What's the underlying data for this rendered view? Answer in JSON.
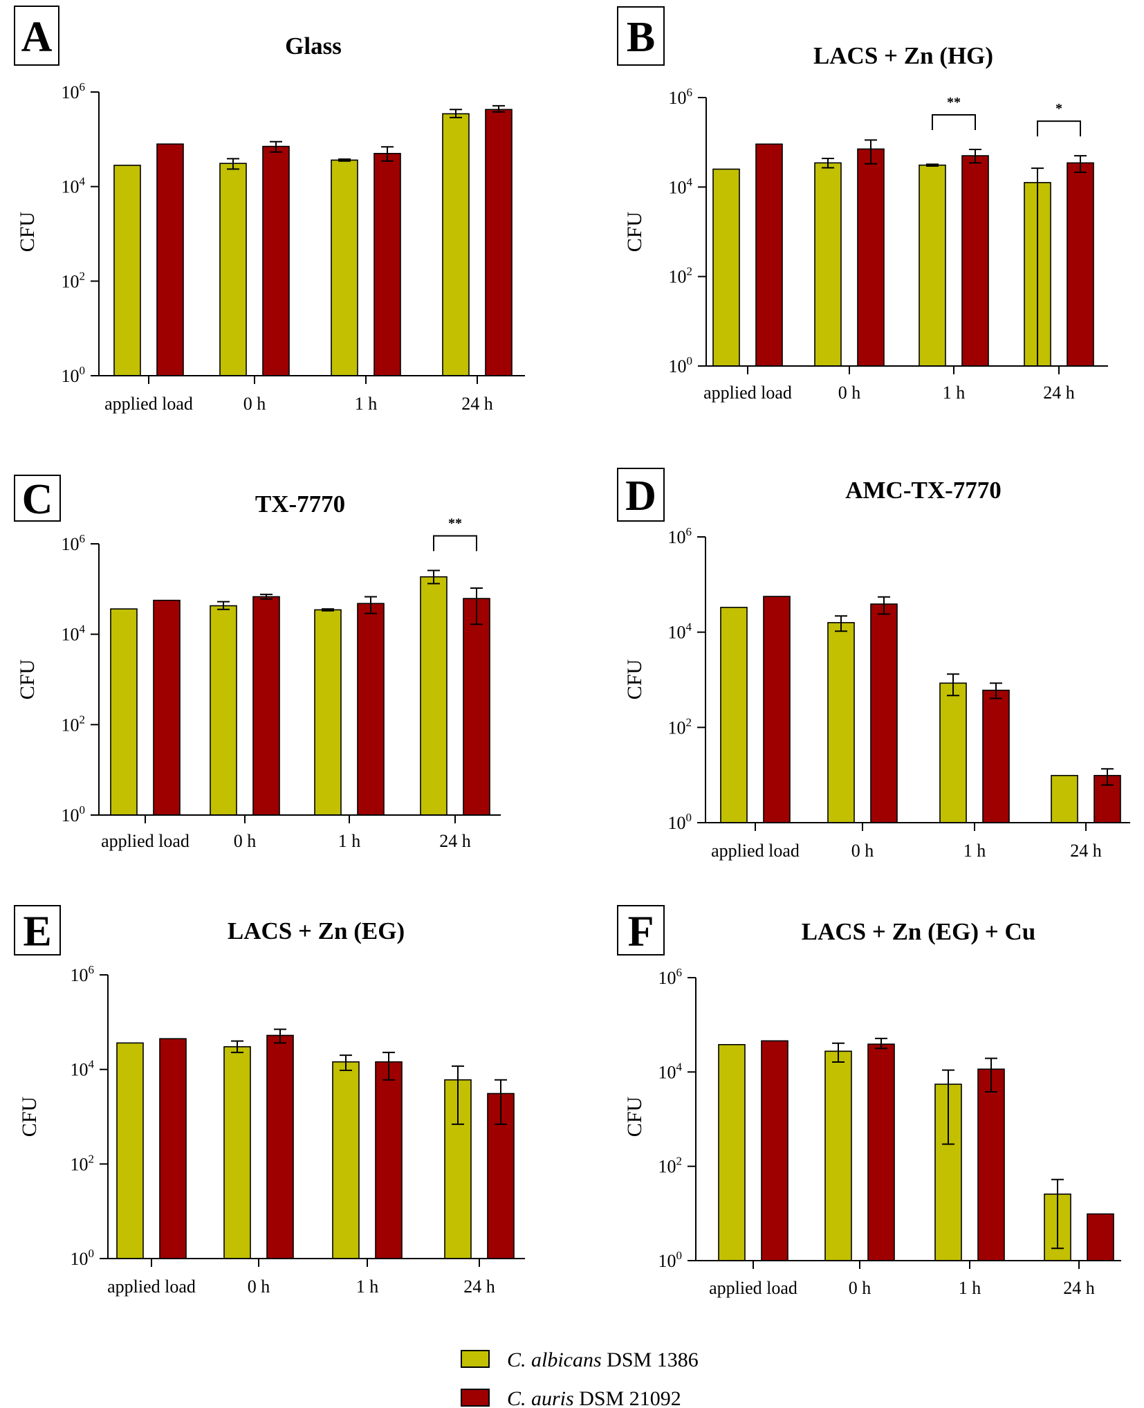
{
  "colors": {
    "albicans": "#c2c000",
    "auris": "#9e0000",
    "axis": "#000000"
  },
  "legend": [
    {
      "species": "C. albicans",
      "strain": " DSM 1386",
      "color_key": "albicans"
    },
    {
      "species": "C. auris",
      "strain": " DSM 21092",
      "color_key": "auris"
    }
  ],
  "chart_data": [
    {
      "type": "bar",
      "panel": "A",
      "title": "Glass",
      "ylabel": "CFU",
      "yscale": "log10",
      "ylim_log10": [
        0,
        6
      ],
      "yticks": [
        {
          "base": "10",
          "exp": "0",
          "v": 0
        },
        {
          "base": "10",
          "exp": "2",
          "v": 2
        },
        {
          "base": "10",
          "exp": "4",
          "v": 4
        },
        {
          "base": "10",
          "exp": "6",
          "v": 6
        }
      ],
      "categories": [
        "applied load",
        "0 h",
        "1 h",
        "24 h"
      ],
      "series": [
        {
          "name": "C. albicans DSM 1386",
          "values_log10": [
            4.45,
            4.49,
            4.56,
            5.54
          ],
          "err_log10": [
            null,
            [
              4.37,
              4.59
            ],
            [
              4.54,
              4.58
            ],
            [
              5.46,
              5.63
            ]
          ]
        },
        {
          "name": "C. auris DSM 21092",
          "values_log10": [
            4.9,
            4.85,
            4.7,
            5.63
          ],
          "err_log10": [
            null,
            [
              4.73,
              4.95
            ],
            [
              4.54,
              4.84
            ],
            [
              5.58,
              5.71
            ]
          ]
        }
      ],
      "significance": []
    },
    {
      "type": "bar",
      "panel": "B",
      "title": "LACS + Zn (HG)",
      "ylabel": "CFU",
      "yscale": "log10",
      "ylim_log10": [
        0,
        6
      ],
      "yticks": [
        {
          "base": "10",
          "exp": "0",
          "v": 0
        },
        {
          "base": "10",
          "exp": "2",
          "v": 2
        },
        {
          "base": "10",
          "exp": "4",
          "v": 4
        },
        {
          "base": "10",
          "exp": "6",
          "v": 6
        }
      ],
      "categories": [
        "applied load",
        "0 h",
        "1 h",
        "24 h"
      ],
      "series": [
        {
          "name": "C. albicans DSM 1386",
          "values_log10": [
            4.4,
            4.54,
            4.49,
            4.1
          ],
          "err_log10": [
            null,
            [
              4.43,
              4.64
            ],
            [
              4.47,
              4.51
            ],
            [
              0,
              4.42
            ]
          ]
        },
        {
          "name": "C. auris DSM 21092",
          "values_log10": [
            4.96,
            4.85,
            4.7,
            4.54
          ],
          "err_log10": [
            null,
            [
              4.52,
              5.05
            ],
            [
              4.54,
              4.84
            ],
            [
              4.33,
              4.7
            ]
          ]
        }
      ],
      "significance": [
        {
          "category_index": 2,
          "label": "**"
        },
        {
          "category_index": 3,
          "label": "*"
        }
      ]
    },
    {
      "type": "bar",
      "panel": "C",
      "title": "TX-7770",
      "ylabel": "CFU",
      "yscale": "log10",
      "ylim_log10": [
        0,
        6
      ],
      "yticks": [
        {
          "base": "10",
          "exp": "0",
          "v": 0
        },
        {
          "base": "10",
          "exp": "2",
          "v": 2
        },
        {
          "base": "10",
          "exp": "4",
          "v": 4
        },
        {
          "base": "10",
          "exp": "6",
          "v": 6
        }
      ],
      "categories": [
        "applied load",
        "0 h",
        "1 h",
        "24 h"
      ],
      "series": [
        {
          "name": "C. albicans DSM 1386",
          "values_log10": [
            4.56,
            4.63,
            4.54,
            5.27
          ],
          "err_log10": [
            null,
            [
              4.55,
              4.72
            ],
            [
              4.52,
              4.56
            ],
            [
              5.12,
              5.41
            ]
          ]
        },
        {
          "name": "C. auris DSM 21092",
          "values_log10": [
            4.75,
            4.83,
            4.68,
            4.79
          ],
          "err_log10": [
            null,
            [
              4.78,
              4.88
            ],
            [
              4.46,
              4.83
            ],
            [
              4.22,
              5.02
            ]
          ]
        }
      ],
      "significance": [
        {
          "category_index": 3,
          "label": "**"
        }
      ]
    },
    {
      "type": "bar",
      "panel": "D",
      "title": "AMC-TX-7770",
      "ylabel": "CFU",
      "yscale": "log10",
      "ylim_log10": [
        0,
        6
      ],
      "yticks": [
        {
          "base": "10",
          "exp": "0",
          "v": 0
        },
        {
          "base": "10",
          "exp": "2",
          "v": 2
        },
        {
          "base": "10",
          "exp": "4",
          "v": 4
        },
        {
          "base": "10",
          "exp": "6",
          "v": 6
        }
      ],
      "categories": [
        "applied load",
        "0 h",
        "1 h",
        "24 h"
      ],
      "series": [
        {
          "name": "C. albicans DSM 1386",
          "values_log10": [
            4.52,
            4.2,
            2.93,
            0.99
          ],
          "err_log10": [
            null,
            [
              4.02,
              4.34
            ],
            [
              2.67,
              3.12
            ],
            null
          ]
        },
        {
          "name": "C. auris DSM 21092",
          "values_log10": [
            4.75,
            4.59,
            2.78,
            0.99
          ],
          "err_log10": [
            null,
            [
              4.38,
              4.74
            ],
            [
              2.61,
              2.93
            ],
            [
              0.79,
              1.13
            ]
          ]
        }
      ],
      "significance": []
    },
    {
      "type": "bar",
      "panel": "E",
      "title": "LACS + Zn (EG)",
      "ylabel": "CFU",
      "yscale": "log10",
      "ylim_log10": [
        0,
        6
      ],
      "yticks": [
        {
          "base": "10",
          "exp": "0",
          "v": 0
        },
        {
          "base": "10",
          "exp": "2",
          "v": 2
        },
        {
          "base": "10",
          "exp": "4",
          "v": 4
        },
        {
          "base": "10",
          "exp": "6",
          "v": 6
        }
      ],
      "categories": [
        "applied load",
        "0 h",
        "1 h",
        "24 h"
      ],
      "series": [
        {
          "name": "C. albicans DSM 1386",
          "values_log10": [
            4.56,
            4.48,
            4.16,
            3.78
          ],
          "err_log10": [
            null,
            [
              4.36,
              4.6
            ],
            [
              3.98,
              4.3
            ],
            [
              2.84,
              4.07
            ]
          ]
        },
        {
          "name": "C. auris DSM 21092",
          "values_log10": [
            4.65,
            4.72,
            4.16,
            3.49
          ],
          "err_log10": [
            null,
            [
              4.56,
              4.85
            ],
            [
              3.78,
              4.36
            ],
            [
              2.84,
              3.78
            ]
          ]
        }
      ],
      "significance": []
    },
    {
      "type": "bar",
      "panel": "F",
      "title": "LACS + Zn (EG) + Cu",
      "ylabel": "CFU",
      "yscale": "log10",
      "ylim_log10": [
        0,
        6
      ],
      "yticks": [
        {
          "base": "10",
          "exp": "0",
          "v": 0
        },
        {
          "base": "10",
          "exp": "2",
          "v": 2
        },
        {
          "base": "10",
          "exp": "4",
          "v": 4
        },
        {
          "base": "10",
          "exp": "6",
          "v": 6
        }
      ],
      "categories": [
        "applied load",
        "0 h",
        "1 h",
        "24 h"
      ],
      "series": [
        {
          "name": "C. albicans DSM 1386",
          "values_log10": [
            4.58,
            4.44,
            3.74,
            1.41
          ],
          "err_log10": [
            null,
            [
              4.21,
              4.61
            ],
            [
              2.47,
              4.04
            ],
            [
              0.26,
              1.72
            ]
          ]
        },
        {
          "name": "C. auris DSM 21092",
          "values_log10": [
            4.66,
            4.59,
            4.06,
            0.99
          ],
          "err_log10": [
            null,
            [
              4.5,
              4.71
            ],
            [
              3.58,
              4.29
            ],
            null
          ]
        }
      ],
      "significance": []
    }
  ]
}
